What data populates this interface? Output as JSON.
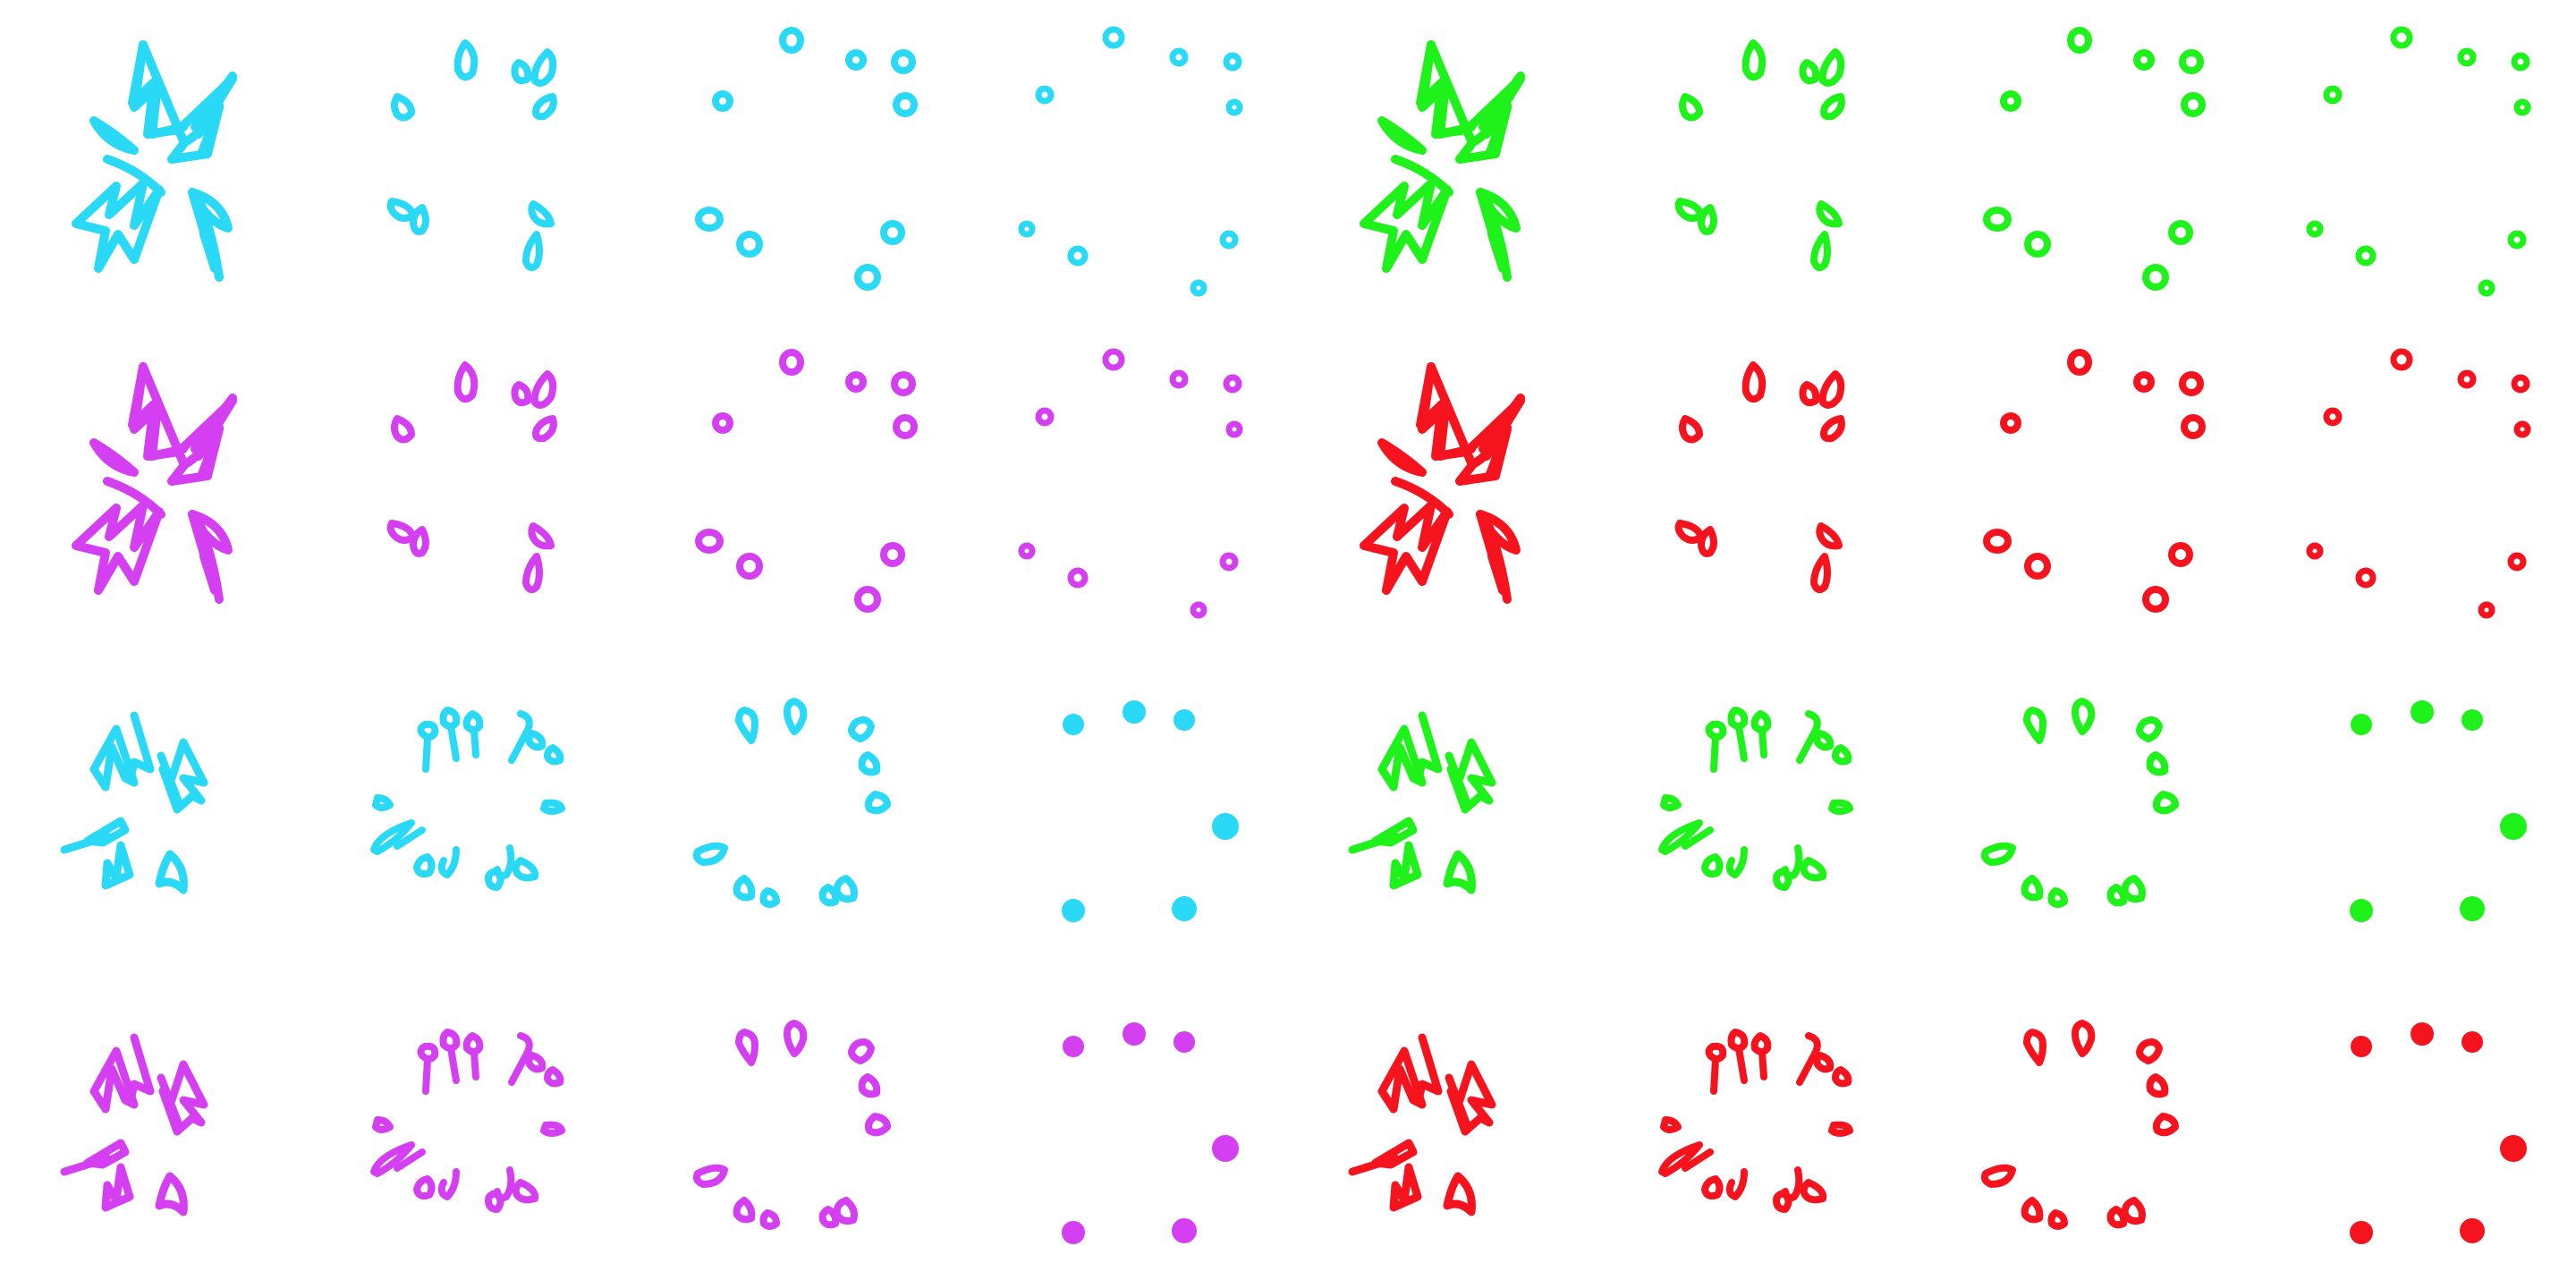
{
  "sheet": {
    "type": "sprite-sheet",
    "frames_per_animation": 4,
    "background": "#ffffff"
  },
  "colors": {
    "cyan": "#29d9f5",
    "magenta": "#d43ff2",
    "green": "#1ef21a",
    "red": "#f5141e"
  },
  "animations": [
    {
      "name": "burst-a-cyan",
      "style": "A",
      "color": "cyan",
      "frames": 4
    },
    {
      "name": "burst-a-green",
      "style": "A",
      "color": "green",
      "frames": 4
    },
    {
      "name": "burst-a-magenta",
      "style": "A",
      "color": "magenta",
      "frames": 4
    },
    {
      "name": "burst-a-red",
      "style": "A",
      "color": "red",
      "frames": 4
    },
    {
      "name": "burst-b-cyan",
      "style": "B",
      "color": "cyan",
      "frames": 4
    },
    {
      "name": "burst-b-green",
      "style": "B",
      "color": "green",
      "frames": 4
    },
    {
      "name": "burst-b-magenta",
      "style": "B",
      "color": "magenta",
      "frames": 4
    },
    {
      "name": "burst-b-red",
      "style": "B",
      "color": "red",
      "frames": 4
    }
  ]
}
